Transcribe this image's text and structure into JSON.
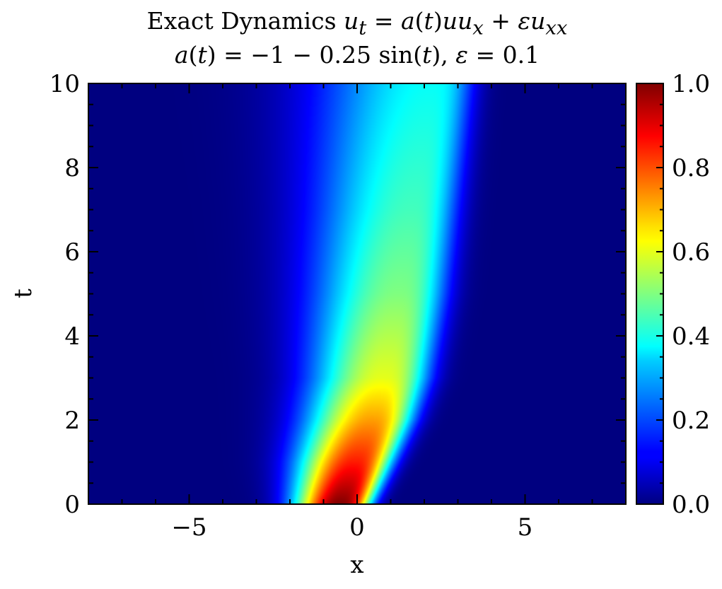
{
  "chart_data": {
    "type": "heatmap",
    "title_parts": {
      "l1_a": "Exact Dynamics ",
      "l1_b": "u",
      "l1_c": "t",
      "l1_d": " = ",
      "l1_e": "a",
      "l1_f": "(",
      "l1_g": "t",
      "l1_h": ")",
      "l1_i": "uu",
      "l1_j": "x",
      "l1_k": " + ",
      "l1_l": "εu",
      "l1_m": "xx",
      "l2_a": "a",
      "l2_b": "(",
      "l2_c": "t",
      "l2_d": ") = −1 − 0.25 sin(",
      "l2_e": "t",
      "l2_f": "), ",
      "l2_g": "ε",
      "l2_h": " = 0.1"
    },
    "xlabel": "x",
    "ylabel": "t",
    "xlim": [
      -8,
      8
    ],
    "ylim": [
      0,
      10
    ],
    "x_ticks": [
      {
        "value": -5,
        "label": "−5"
      },
      {
        "value": 0,
        "label": "0"
      },
      {
        "value": 5,
        "label": "5"
      }
    ],
    "y_ticks": [
      {
        "value": 0,
        "label": "0"
      },
      {
        "value": 2,
        "label": "2"
      },
      {
        "value": 4,
        "label": "4"
      },
      {
        "value": 6,
        "label": "6"
      },
      {
        "value": 8,
        "label": "8"
      },
      {
        "value": 10,
        "label": "10"
      }
    ],
    "colorbar": {
      "colormap": "jet",
      "range": [
        0,
        1
      ],
      "ticks": [
        {
          "value": 0.0,
          "label": "0.0"
        },
        {
          "value": 0.2,
          "label": "0.2"
        },
        {
          "value": 0.4,
          "label": "0.4"
        },
        {
          "value": 0.6,
          "label": "0.6"
        },
        {
          "value": 0.8,
          "label": "0.8"
        },
        {
          "value": 1.0,
          "label": "1.0"
        }
      ]
    },
    "field_profile": [
      {
        "t": 0,
        "center": -0.55,
        "peak": 1.0,
        "left_width": 0.95,
        "right_width": 0.75
      },
      {
        "t": 1,
        "center": -0.1,
        "peak": 0.85,
        "left_width": 1.2,
        "right_width": 0.9
      },
      {
        "t": 2,
        "center": 0.4,
        "peak": 0.72,
        "left_width": 1.4,
        "right_width": 1.0
      },
      {
        "t": 3,
        "center": 0.75,
        "peak": 0.6,
        "left_width": 1.55,
        "right_width": 1.1
      },
      {
        "t": 5,
        "center": 1.2,
        "peak": 0.5,
        "left_width": 1.85,
        "right_width": 1.15
      },
      {
        "t": 7,
        "center": 1.6,
        "peak": 0.44,
        "left_width": 2.1,
        "right_width": 1.1
      },
      {
        "t": 10,
        "center": 2.2,
        "peak": 0.38,
        "left_width": 2.5,
        "right_width": 1.0
      }
    ]
  }
}
